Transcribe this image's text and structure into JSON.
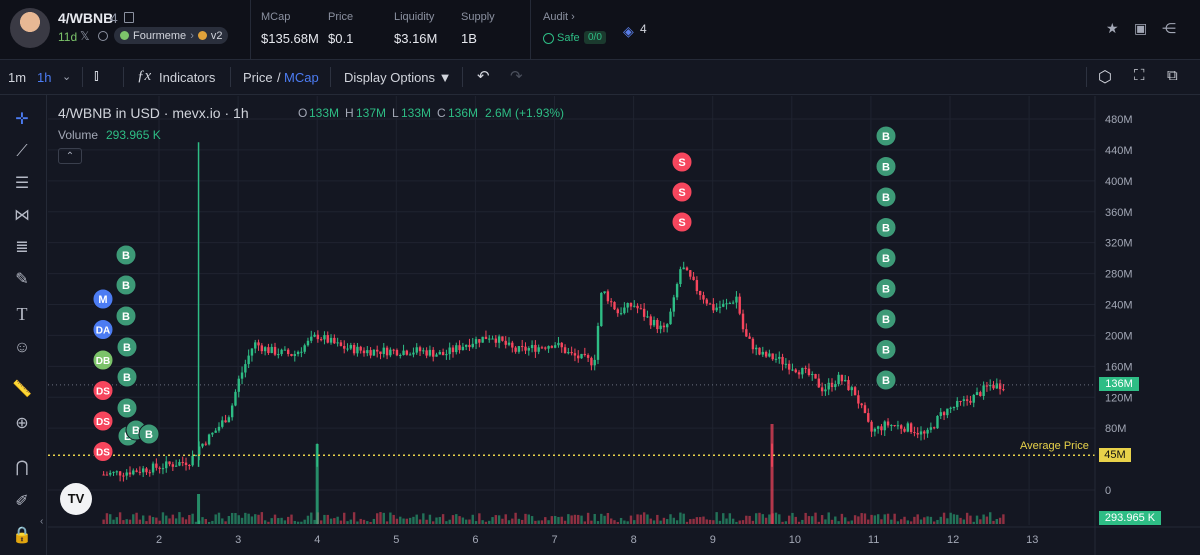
{
  "header": {
    "token_name": "4/WBNB",
    "token_num": "4",
    "age": "11d",
    "platform_label": "Fourmeme",
    "version_label": "v2",
    "stats": [
      {
        "label": "MCap",
        "value": "$135.68M"
      },
      {
        "label": "Price",
        "value": "$0.1"
      },
      {
        "label": "Liquidity",
        "value": "$3.16M"
      },
      {
        "label": "Supply",
        "value": "1B"
      }
    ],
    "audit_label": "Audit",
    "safe_label": "Safe",
    "safe_score": "0/0",
    "holders": "4"
  },
  "toolbar": {
    "tf_1m": "1m",
    "tf_1h": "1h",
    "indicators": "Indicators",
    "price_label": "Price",
    "slash": "/",
    "mcap_label": "MCap",
    "display_options": "Display Options ▼"
  },
  "chart_info": {
    "title": "4/WBNB in USD · mevx.io · 1h",
    "o_label": "O",
    "o": "133M",
    "h_label": "H",
    "h": "137M",
    "l_label": "L",
    "l": "133M",
    "c_label": "C",
    "c": "136M",
    "change": "2.6M (+1.93%)",
    "volume_label": "Volume",
    "volume_value": "293.965 K",
    "average_price_label": "Average Price",
    "current_label": "136M",
    "avg_value_label": "45M",
    "vol_axis_label": "293.965 K"
  },
  "chart_data": {
    "type": "candlestick",
    "y_axis_ticks": [
      "480M",
      "440M",
      "400M",
      "360M",
      "320M",
      "280M",
      "240M",
      "200M",
      "160M",
      "120M",
      "80M",
      "0"
    ],
    "x_axis_ticks": [
      "2",
      "3",
      "4",
      "5",
      "6",
      "7",
      "8",
      "9",
      "10",
      "11",
      "12",
      "13"
    ],
    "current_value": 136,
    "average_price": 45,
    "volume_last": "293.965 K",
    "close_path": [
      [
        1.3,
        20
      ],
      [
        1.7,
        25
      ],
      [
        2.0,
        30
      ],
      [
        2.4,
        38
      ],
      [
        2.5,
        55
      ],
      [
        2.7,
        75
      ],
      [
        2.9,
        100
      ],
      [
        3.0,
        140
      ],
      [
        3.2,
        190
      ],
      [
        3.4,
        180
      ],
      [
        3.7,
        175
      ],
      [
        4.0,
        200
      ],
      [
        4.3,
        185
      ],
      [
        4.6,
        180
      ],
      [
        5.0,
        180
      ],
      [
        5.3,
        180
      ],
      [
        5.6,
        175
      ],
      [
        5.9,
        190
      ],
      [
        6.2,
        200
      ],
      [
        6.5,
        180
      ],
      [
        6.8,
        185
      ],
      [
        7.0,
        190
      ],
      [
        7.2,
        175
      ],
      [
        7.5,
        165
      ],
      [
        7.6,
        260
      ],
      [
        7.8,
        230
      ],
      [
        8.0,
        240
      ],
      [
        8.2,
        220
      ],
      [
        8.4,
        205
      ],
      [
        8.5,
        240
      ],
      [
        8.6,
        290
      ],
      [
        8.8,
        260
      ],
      [
        9.0,
        235
      ],
      [
        9.2,
        240
      ],
      [
        9.3,
        250
      ],
      [
        9.4,
        200
      ],
      [
        9.6,
        175
      ],
      [
        9.8,
        170
      ],
      [
        10.0,
        160
      ],
      [
        10.2,
        150
      ],
      [
        10.4,
        130
      ],
      [
        10.6,
        145
      ],
      [
        10.8,
        125
      ],
      [
        11.0,
        75
      ],
      [
        11.2,
        85
      ],
      [
        11.5,
        80
      ],
      [
        11.7,
        70
      ],
      [
        11.9,
        100
      ],
      [
        12.1,
        110
      ],
      [
        12.3,
        120
      ],
      [
        12.5,
        135
      ],
      [
        12.7,
        136
      ]
    ],
    "sell_markers": [
      "S",
      "S",
      "S"
    ],
    "buy_markers": [
      "B",
      "B",
      "B",
      "B",
      "B",
      "B",
      "B",
      "B",
      "B"
    ],
    "left_markers": [
      "M",
      "DA",
      "DB",
      "DS",
      "DS",
      "DS"
    ],
    "left_buy_markers": [
      "B",
      "B",
      "B",
      "B",
      "B",
      "B",
      "B",
      "B",
      "B"
    ]
  },
  "colors": {
    "up": "#2ebd85",
    "down": "#f6465d",
    "background": "#141722",
    "average": "#e8d24a",
    "accent": "#4c7cf3"
  },
  "icons": [
    "x-icon",
    "search-icon",
    "star-icon",
    "share-icon",
    "crosshair-icon",
    "trendline-icon",
    "fib-icon",
    "pattern-icon",
    "text-icon",
    "emoji-icon",
    "ruler-icon",
    "zoom-icon",
    "magnet-icon",
    "undo-icon",
    "redo-icon",
    "settings-icon",
    "fullscreen-icon",
    "camera-icon"
  ]
}
